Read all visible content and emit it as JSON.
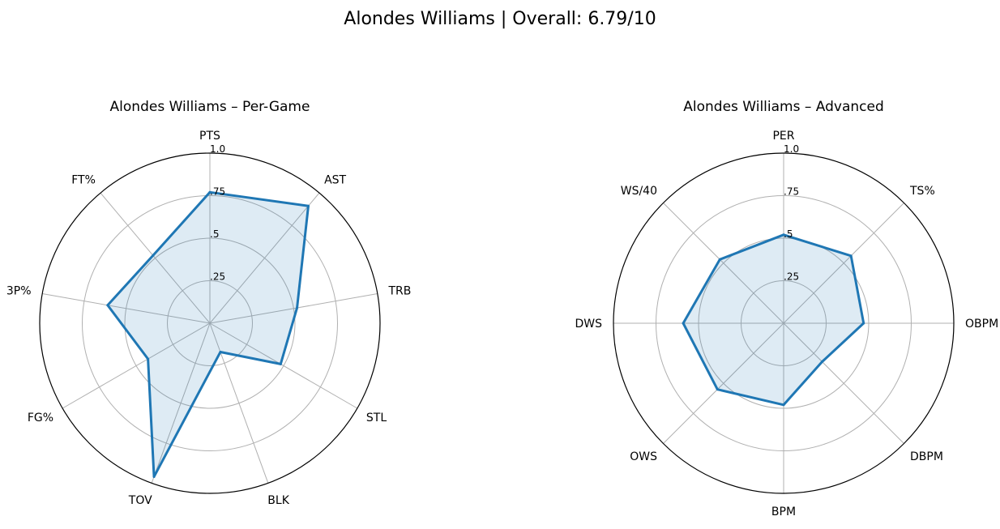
{
  "figure": {
    "title": "Alondes Williams | Overall: 6.79/10"
  },
  "chart_data": [
    {
      "type": "radar",
      "title": "Alondes Williams – Per-Game",
      "categories": [
        "PTS",
        "AST",
        "TRB",
        "STL",
        "BLK",
        "TOV",
        "FG%",
        "3P%",
        "FT%"
      ],
      "series": [
        {
          "values": [
            0.77,
            0.9,
            0.52,
            0.48,
            0.18,
            0.96,
            0.42,
            0.61,
            0.52
          ]
        }
      ],
      "rlim": [
        0,
        1
      ],
      "rticks": [
        0.25,
        0.5,
        0.75,
        1.0
      ],
      "rtick_labels": [
        ".25",
        ".5",
        ".75",
        "1.0"
      ],
      "grid": true,
      "line_color": "#1f77b4",
      "fill_color": "#1f77b4"
    },
    {
      "type": "radar",
      "title": "Alondes Williams – Advanced",
      "categories": [
        "PER",
        "TS%",
        "OBPM",
        "DBPM",
        "BPM",
        "OWS",
        "DWS",
        "WS/40"
      ],
      "series": [
        {
          "values": [
            0.52,
            0.56,
            0.47,
            0.32,
            0.48,
            0.55,
            0.59,
            0.53
          ]
        }
      ],
      "rlim": [
        0,
        1
      ],
      "rticks": [
        0.25,
        0.5,
        0.75,
        1.0
      ],
      "rtick_labels": [
        ".25",
        ".5",
        ".75",
        "1.0"
      ],
      "grid": true,
      "line_color": "#1f77b4",
      "fill_color": "#1f77b4"
    }
  ]
}
